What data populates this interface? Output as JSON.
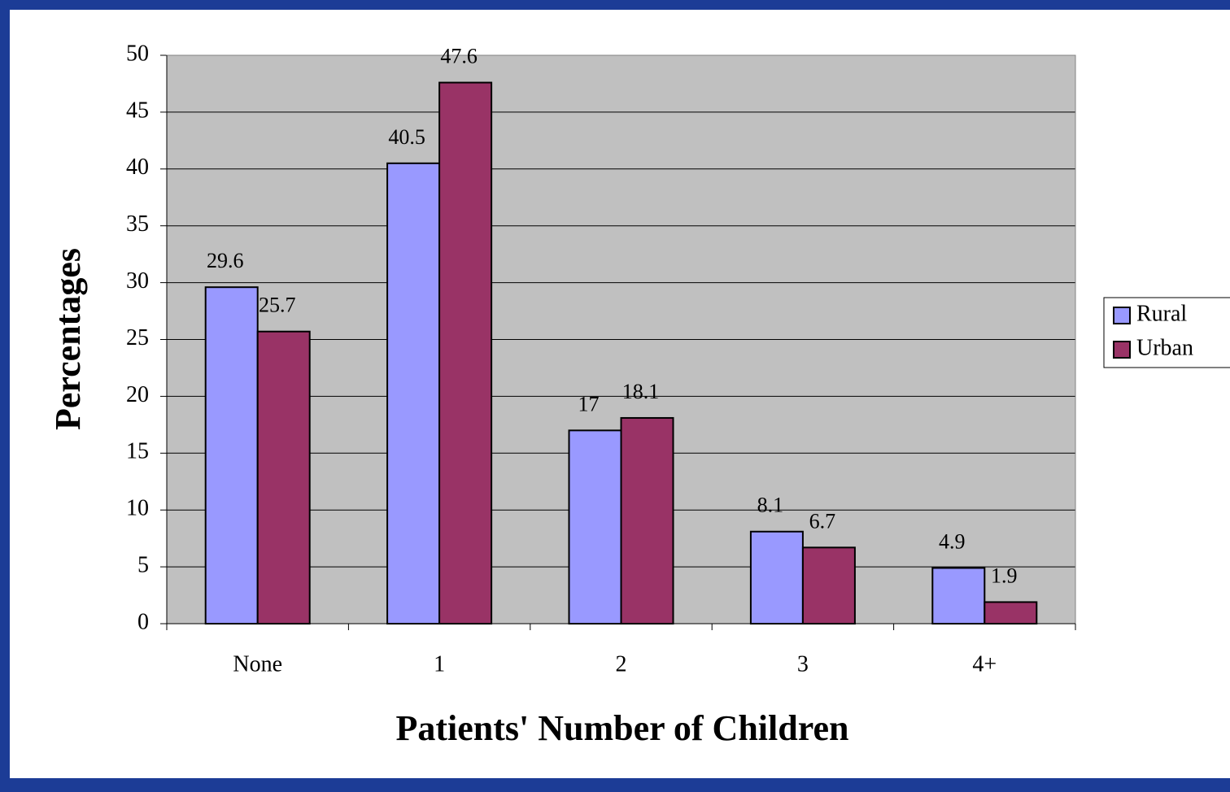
{
  "chart_data": {
    "type": "bar",
    "x_label": "Patients' Number of Children",
    "y_label": "Percentages",
    "categories": [
      "None",
      "1",
      "2",
      "3",
      "4+"
    ],
    "series": [
      {
        "name": "Rural",
        "color": "#9999ff",
        "values": [
          29.6,
          40.5,
          17,
          8.1,
          4.9
        ]
      },
      {
        "name": "Urban",
        "color": "#993366",
        "values": [
          25.7,
          47.6,
          18.1,
          6.7,
          1.9
        ]
      }
    ],
    "ylim": [
      0,
      50
    ],
    "yticks": [
      0,
      5,
      10,
      15,
      20,
      25,
      30,
      35,
      40,
      45,
      50
    ],
    "grid": true,
    "legend": "right"
  }
}
